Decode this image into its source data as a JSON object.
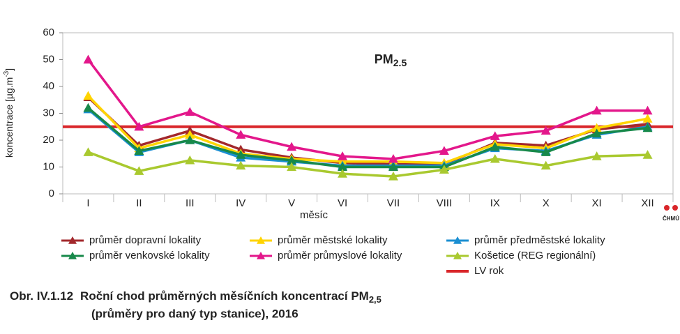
{
  "chart_data": {
    "type": "line",
    "title": {
      "text": "PM",
      "sub": "2.5"
    },
    "ylabel": {
      "text": "koncentrace [µg.m",
      "sup": "-3",
      "end": "]"
    },
    "xlabel": "měsíc",
    "logo": "ČHMÚ",
    "categories": [
      "I",
      "II",
      "III",
      "IV",
      "V",
      "VI",
      "VII",
      "VIII",
      "IX",
      "X",
      "XI",
      "XII"
    ],
    "ylim": [
      0,
      60
    ],
    "yticks": [
      0,
      10,
      20,
      30,
      40,
      50,
      60
    ],
    "series": [
      {
        "name": "průměr dopravní lokality",
        "color": "#a3282c",
        "values": [
          36,
          18,
          23.5,
          16.5,
          13.5,
          11.5,
          11,
          11,
          19,
          18,
          24,
          26
        ]
      },
      {
        "name": "průměr městské lokality",
        "color": "#ffd400",
        "values": [
          36.5,
          17,
          22,
          15,
          13,
          12,
          12,
          11.5,
          18.5,
          17,
          24.5,
          28
        ]
      },
      {
        "name": "průměr předměstské lokality",
        "color": "#1b8fd2",
        "values": [
          31.5,
          15.5,
          20,
          13.5,
          12,
          10.5,
          10.5,
          10.5,
          17,
          16,
          22,
          25
        ]
      },
      {
        "name": "průměr venkovské lokality",
        "color": "#17894a",
        "values": [
          32,
          16,
          20,
          14.5,
          12.5,
          10,
          10,
          10,
          17.5,
          15.5,
          22.5,
          24.5
        ]
      },
      {
        "name": "průměr průmyslové lokality",
        "color": "#e3178b",
        "values": [
          50,
          25,
          30.5,
          22,
          17.5,
          14,
          13,
          16,
          21.5,
          23.5,
          31,
          31
        ]
      },
      {
        "name": "Košetice (REG regionální)",
        "color": "#a9c92f",
        "values": [
          15.5,
          8.5,
          12.5,
          10.5,
          10,
          7.5,
          6.5,
          9,
          13,
          10.5,
          14,
          14.5
        ]
      }
    ],
    "reference_lines": [
      {
        "name": "LV rok",
        "color": "#d9262a",
        "value": 25
      }
    ]
  },
  "caption": {
    "number": "Obr. IV.1.12",
    "line1": "Roční chod průměrných měsíčních koncentrací PM",
    "line1_sub": "2,5",
    "line2": "(průměry pro daný typ stanice), 2016"
  }
}
